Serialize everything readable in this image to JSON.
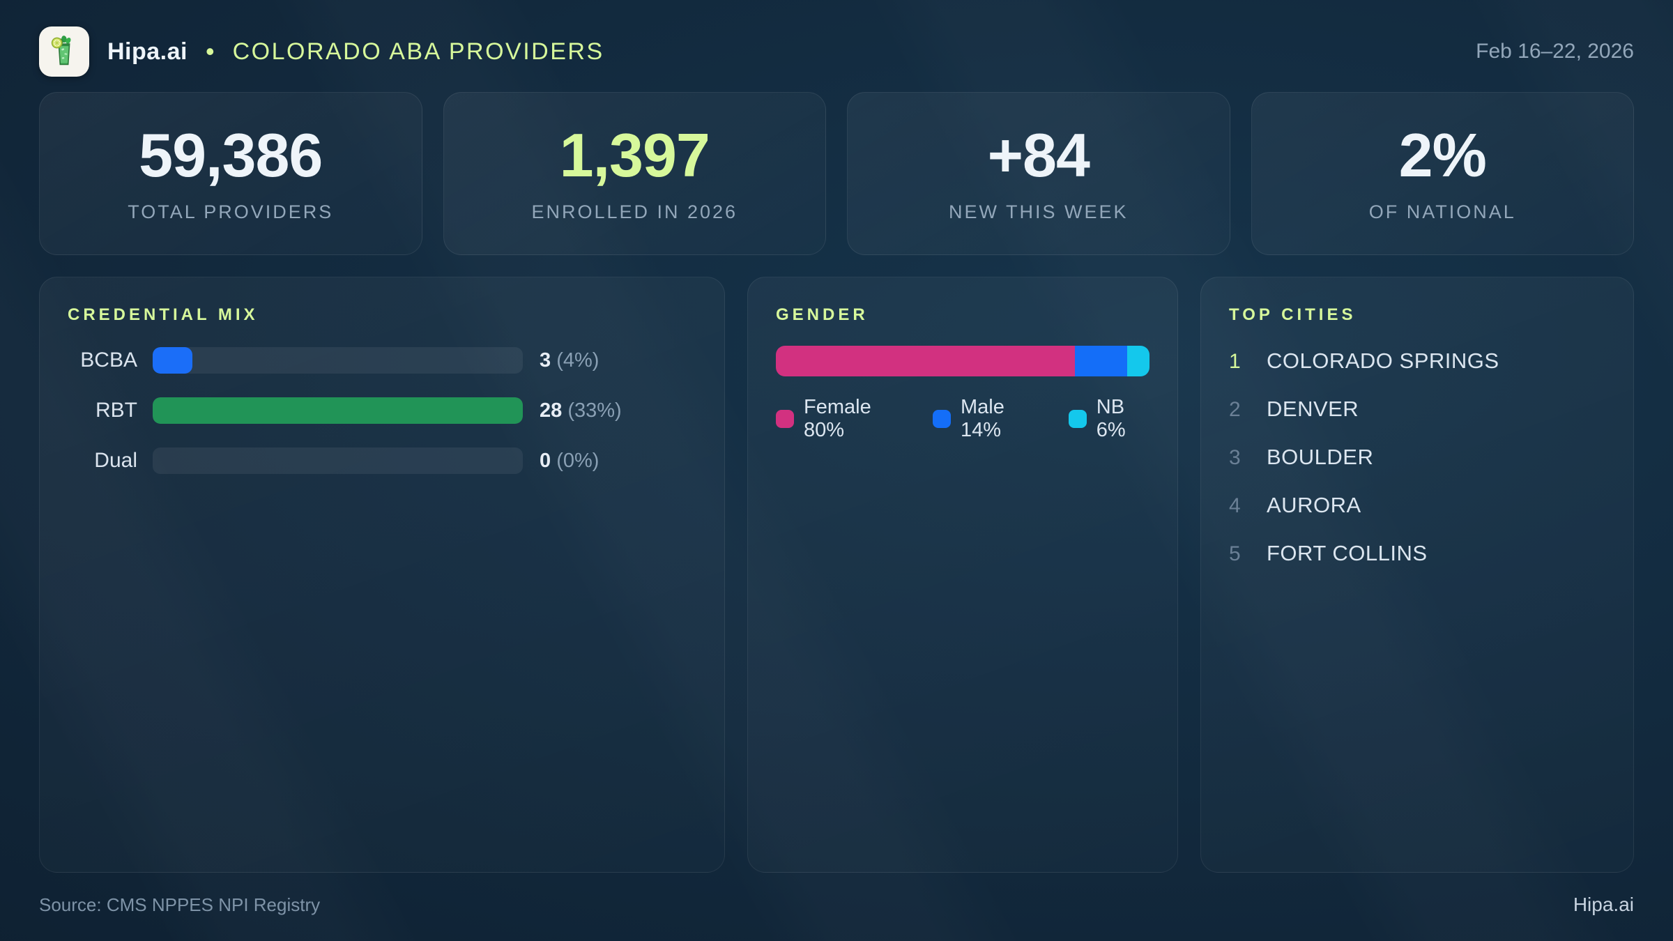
{
  "brand": {
    "name": "Hipa.ai",
    "logo_icon": "mojito-glass-icon"
  },
  "header": {
    "separator": "•",
    "title": "COLORADO ABA PROVIDERS",
    "date_range": "Feb 16–22, 2026"
  },
  "stats": [
    {
      "value": "59,386",
      "label": "TOTAL PROVIDERS",
      "highlight": false
    },
    {
      "value": "1,397",
      "label": "ENROLLED IN 2026",
      "highlight": true
    },
    {
      "value": "+84",
      "label": "NEW THIS WEEK",
      "highlight": false
    },
    {
      "value": "2%",
      "label": "OF NATIONAL",
      "highlight": false
    }
  ],
  "credential_mix": {
    "title": "CREDENTIAL MIX",
    "rows": [
      {
        "label": "BCBA",
        "count": 3,
        "pct": 4,
        "color": "#1b6ef8"
      },
      {
        "label": "RBT",
        "count": 28,
        "pct": 33,
        "color": "#219457"
      },
      {
        "label": "Dual",
        "count": 0,
        "pct": 0,
        "color": "none"
      }
    ]
  },
  "gender": {
    "title": "GENDER",
    "segments": [
      {
        "label": "Female",
        "pct": 80,
        "color": "#d23180"
      },
      {
        "label": "Male",
        "pct": 14,
        "color": "#146ef8"
      },
      {
        "label": "NB",
        "pct": 6,
        "color": "#14c8ec"
      }
    ]
  },
  "top_cities": {
    "title": "TOP CITIES",
    "items": [
      {
        "rank": 1,
        "name": "COLORADO SPRINGS"
      },
      {
        "rank": 2,
        "name": "DENVER"
      },
      {
        "rank": 3,
        "name": "BOULDER"
      },
      {
        "rank": 4,
        "name": "AURORA"
      },
      {
        "rank": 5,
        "name": "FORT COLLINS"
      }
    ]
  },
  "footer": {
    "source": "Source: CMS NPPES NPI Registry",
    "brand": "Hipa.ai"
  },
  "colors": {
    "accent_lime": "#d7f89b",
    "bcba_blue": "#1b6ef8",
    "rbt_green": "#219457",
    "female_pink": "#d23180",
    "male_blue": "#146ef8",
    "nb_cyan": "#14c8ec",
    "muted_text": "#93a7ba"
  },
  "chart_data": [
    {
      "type": "bar",
      "orientation": "horizontal",
      "title": "CREDENTIAL MIX",
      "categories": [
        "BCBA",
        "RBT",
        "Dual"
      ],
      "values": [
        3,
        28,
        0
      ],
      "value_labels": [
        "3 (4%)",
        "28 (33%)",
        "0 (0%)"
      ],
      "xlim": [
        0,
        28
      ],
      "grid": false,
      "colors": [
        "#1b6ef8",
        "#219457",
        "none"
      ]
    },
    {
      "type": "bar",
      "subtype": "stacked-100pct-single-bar",
      "title": "GENDER",
      "categories": [
        "Female",
        "Male",
        "NB"
      ],
      "values": [
        80,
        14,
        6
      ],
      "unit": "%",
      "legend": [
        "Female 80%",
        "Male 14%",
        "NB 6%"
      ],
      "legend_position": "bottom",
      "colors": [
        "#d23180",
        "#146ef8",
        "#14c8ec"
      ]
    },
    {
      "type": "table",
      "title": "TOP CITIES",
      "columns": [
        "rank",
        "city"
      ],
      "rows": [
        [
          1,
          "COLORADO SPRINGS"
        ],
        [
          2,
          "DENVER"
        ],
        [
          3,
          "BOULDER"
        ],
        [
          4,
          "AURORA"
        ],
        [
          5,
          "FORT COLLINS"
        ]
      ]
    }
  ]
}
